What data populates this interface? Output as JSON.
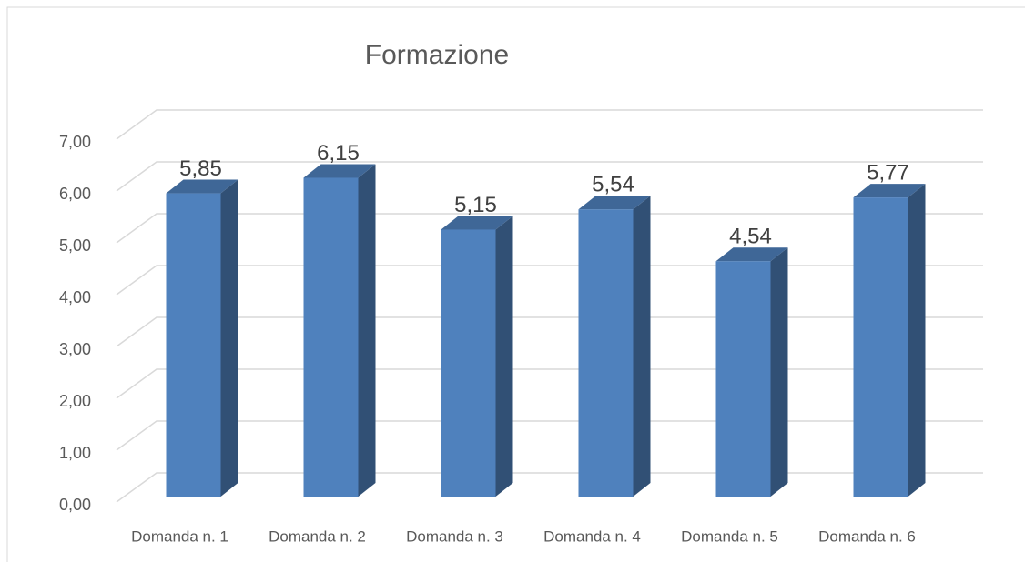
{
  "chart_data": {
    "type": "bar3d",
    "title": "Formazione",
    "categories": [
      "Domanda n. 1",
      "Domanda n. 2",
      "Domanda n. 3",
      "Domanda n. 4",
      "Domanda n. 5",
      "Domanda n. 6"
    ],
    "values": [
      5.85,
      6.15,
      5.15,
      5.54,
      4.54,
      5.77
    ],
    "value_labels": [
      "5,85",
      "6,15",
      "5,15",
      "5,54",
      "4,54",
      "5,77"
    ],
    "color": "#4f81bd",
    "ylim": [
      0,
      7
    ],
    "yticks": [
      {
        "value": 0,
        "label": "0,00"
      },
      {
        "value": 1,
        "label": "1,00"
      },
      {
        "value": 2,
        "label": "2,00"
      },
      {
        "value": 3,
        "label": "3,00"
      },
      {
        "value": 4,
        "label": "4,00"
      },
      {
        "value": 5,
        "label": "5,00"
      },
      {
        "value": 6,
        "label": "6,00"
      },
      {
        "value": 7,
        "label": "7,00"
      }
    ],
    "grid": true
  }
}
